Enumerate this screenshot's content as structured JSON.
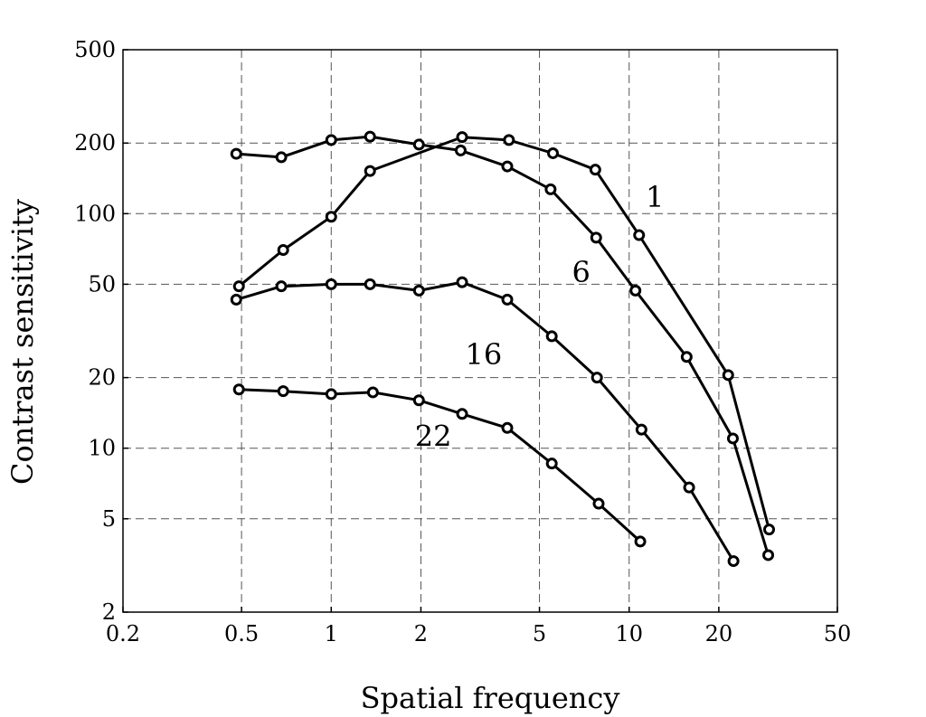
{
  "chart_data": {
    "type": "line",
    "xlabel": "Spatial frequency",
    "ylabel": "Contrast sensitivity",
    "xscale": "log",
    "yscale": "log",
    "xlim": [
      0.2,
      50
    ],
    "ylim": [
      2,
      500
    ],
    "grid": true,
    "x_ticks": [
      "0.2",
      "0.5",
      "1",
      "2",
      "5",
      "10",
      "20",
      "50"
    ],
    "y_ticks": [
      "2",
      "5",
      "10",
      "20",
      "50",
      "100",
      "200",
      "500"
    ],
    "series": [
      {
        "name": "1",
        "x": [
          0.49,
          0.69,
          1.0,
          1.35,
          2.75,
          3.95,
          5.55,
          7.7,
          10.8,
          21.5,
          29.5
        ],
        "y": [
          49,
          70,
          97,
          152,
          212,
          206,
          181,
          154,
          81,
          20.5,
          4.5
        ]
      },
      {
        "name": "6",
        "x": [
          0.48,
          0.68,
          1.0,
          1.35,
          1.97,
          2.72,
          3.9,
          5.45,
          7.75,
          10.5,
          15.6,
          22.3,
          29.3
        ],
        "y": [
          180,
          174,
          206,
          213,
          197,
          186,
          159,
          127,
          79,
          47,
          24.5,
          11,
          3.5
        ]
      },
      {
        "name": "16",
        "x": [
          0.48,
          0.68,
          1.0,
          1.35,
          1.97,
          2.75,
          3.9,
          5.5,
          7.8,
          11.0,
          15.9,
          22.4
        ],
        "y": [
          43,
          49,
          50,
          50,
          47,
          51,
          43,
          30,
          20,
          12,
          6.8,
          3.3
        ]
      },
      {
        "name": "22",
        "x": [
          0.49,
          0.69,
          1.0,
          1.38,
          1.97,
          2.75,
          3.9,
          5.5,
          7.9,
          10.9
        ],
        "y": [
          17.8,
          17.5,
          17,
          17.3,
          16,
          14,
          12.2,
          8.6,
          5.8,
          4
        ]
      }
    ]
  }
}
